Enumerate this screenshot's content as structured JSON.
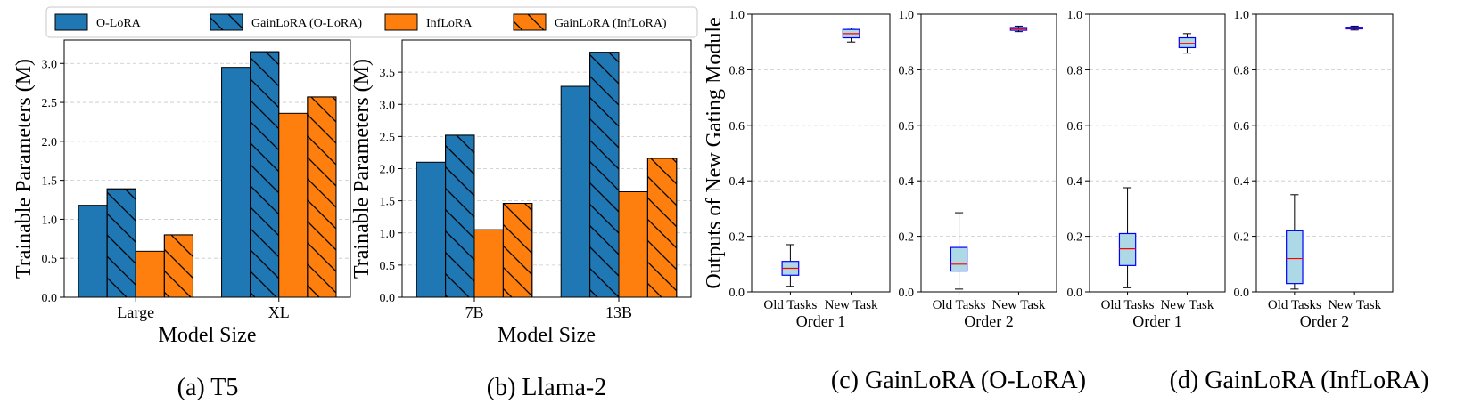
{
  "colors": {
    "olora": "#1f77b4",
    "infLora": "#ff7f0e",
    "boxFill": "#add8e6",
    "boxEdge": "#0000ff",
    "median": "#ff0000",
    "grid": "#c8c8c8"
  },
  "legend": {
    "items": [
      {
        "label": "O-LoRA",
        "color": "olora",
        "hatch": false
      },
      {
        "label": "GainLoRA (O-LoRA)",
        "color": "olora",
        "hatch": true
      },
      {
        "label": "InfLoRA",
        "color": "infLora",
        "hatch": false
      },
      {
        "label": "GainLoRA (InfLoRA)",
        "color": "infLora",
        "hatch": true
      }
    ]
  },
  "chart_data": [
    {
      "type": "bar",
      "id": "a",
      "caption": "(a) T5",
      "categories": [
        "Large",
        "XL"
      ],
      "series": [
        {
          "name": "O-LoRA",
          "values": [
            1.18,
            2.95
          ]
        },
        {
          "name": "GainLoRA (O-LoRA)",
          "values": [
            1.39,
            3.15
          ]
        },
        {
          "name": "InfLoRA",
          "values": [
            0.59,
            2.36
          ]
        },
        {
          "name": "GainLoRA (InfLoRA)",
          "values": [
            0.8,
            2.57
          ]
        }
      ],
      "xlabel": "Model Size",
      "ylabel": "Trainable Parameters (M)",
      "ylim": [
        0,
        3.3
      ],
      "yticks": [
        "0.0",
        "0.5",
        "1.0",
        "1.5",
        "2.0",
        "2.5",
        "3.0"
      ],
      "ytick_values": [
        0,
        0.5,
        1.0,
        1.5,
        2.0,
        2.5,
        3.0
      ],
      "grid": true
    },
    {
      "type": "bar",
      "id": "b",
      "caption": "(b) Llama-2",
      "categories": [
        "7B",
        "13B"
      ],
      "series": [
        {
          "name": "O-LoRA",
          "values": [
            2.1,
            3.28
          ]
        },
        {
          "name": "GainLoRA (O-LoRA)",
          "values": [
            2.52,
            3.81
          ]
        },
        {
          "name": "InfLoRA",
          "values": [
            1.05,
            1.64
          ]
        },
        {
          "name": "GainLoRA (InfLoRA)",
          "values": [
            1.46,
            2.16
          ]
        }
      ],
      "xlabel": "Model Size",
      "ylabel": "Trainable Parameters (M)",
      "ylim": [
        0,
        4.0
      ],
      "yticks": [
        "0.0",
        "0.5",
        "1.0",
        "1.5",
        "2.0",
        "2.5",
        "3.0",
        "3.5"
      ],
      "ytick_values": [
        0,
        0.5,
        1.0,
        1.5,
        2.0,
        2.5,
        3.0,
        3.5
      ],
      "grid": true
    },
    {
      "type": "box",
      "id": "c1",
      "group": "c",
      "ylabel": "Outputs of New Gating Module",
      "xlabel": "Order 1",
      "categories": [
        "Old Tasks",
        "New Task"
      ],
      "boxes": [
        {
          "min": 0.02,
          "q1": 0.06,
          "median": 0.085,
          "q3": 0.11,
          "max": 0.17
        },
        {
          "min": 0.9,
          "q1": 0.915,
          "median": 0.93,
          "q3": 0.945,
          "max": 0.95
        }
      ],
      "ylim": [
        0,
        1.0
      ],
      "yticks": [
        "0.0",
        "0.2",
        "0.4",
        "0.6",
        "0.8",
        "1.0"
      ],
      "ytick_values": [
        0,
        0.2,
        0.4,
        0.6,
        0.8,
        1.0
      ]
    },
    {
      "type": "box",
      "id": "c2",
      "group": "c",
      "ylabel": "",
      "xlabel": "Order 2",
      "categories": [
        "Old Tasks",
        "New Task"
      ],
      "boxes": [
        {
          "min": 0.01,
          "q1": 0.075,
          "median": 0.1,
          "q3": 0.16,
          "max": 0.285
        },
        {
          "min": 0.937,
          "q1": 0.942,
          "median": 0.947,
          "q3": 0.952,
          "max": 0.957
        }
      ],
      "ylim": [
        0,
        1.0
      ],
      "yticks": [
        "0.0",
        "0.2",
        "0.4",
        "0.6",
        "0.8",
        "1.0"
      ],
      "ytick_values": [
        0,
        0.2,
        0.4,
        0.6,
        0.8,
        1.0
      ]
    },
    {
      "type": "box",
      "id": "d1",
      "group": "d",
      "ylabel": "",
      "xlabel": "Order 1",
      "categories": [
        "Old Tasks",
        "New Task"
      ],
      "boxes": [
        {
          "min": 0.015,
          "q1": 0.095,
          "median": 0.155,
          "q3": 0.21,
          "max": 0.375
        },
        {
          "min": 0.86,
          "q1": 0.88,
          "median": 0.895,
          "q3": 0.915,
          "max": 0.93
        }
      ],
      "ylim": [
        0,
        1.0
      ],
      "yticks": [
        "0.0",
        "0.2",
        "0.4",
        "0.6",
        "0.8",
        "1.0"
      ],
      "ytick_values": [
        0,
        0.2,
        0.4,
        0.6,
        0.8,
        1.0
      ]
    },
    {
      "type": "box",
      "id": "d2",
      "group": "d",
      "ylabel": "",
      "xlabel": "Order 2",
      "categories": [
        "Old Tasks",
        "New Task"
      ],
      "boxes": [
        {
          "min": 0.01,
          "q1": 0.03,
          "median": 0.12,
          "q3": 0.22,
          "max": 0.35
        },
        {
          "min": 0.943,
          "q1": 0.947,
          "median": 0.95,
          "q3": 0.953,
          "max": 0.957
        }
      ],
      "ylim": [
        0,
        1.0
      ],
      "yticks": [
        "0.0",
        "0.2",
        "0.4",
        "0.6",
        "0.8",
        "1.0"
      ],
      "ytick_values": [
        0,
        0.2,
        0.4,
        0.6,
        0.8,
        1.0
      ]
    }
  ],
  "captions": {
    "c": "(c) GainLoRA (O-LoRA)",
    "d": "(d) GainLoRA (InfLoRA)"
  }
}
